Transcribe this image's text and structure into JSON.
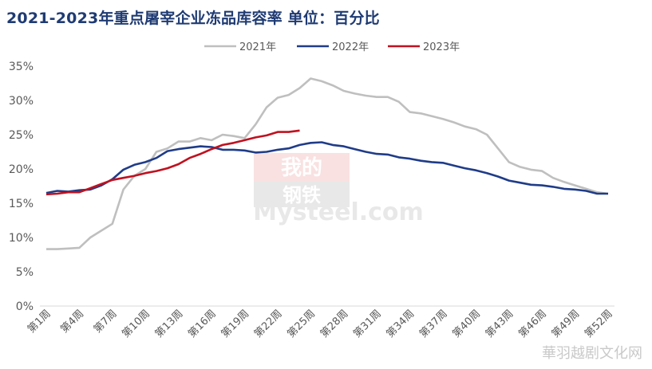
{
  "title": "2021-2023年重点屠宰企业冻品库容率 单位：百分比",
  "watermark": {
    "top": "我的",
    "middle": "钢铁",
    "brand": "Mysteel.com"
  },
  "corner_watermark": "華羽越剧文化网",
  "colors": {
    "2021": "#bfbfbf",
    "2022": "#1f3c88",
    "2023": "#c0111f",
    "axis": "#d9d9d9",
    "tick": "#595959",
    "title": "#1f3b73"
  },
  "chart_data": {
    "type": "line",
    "title": "2021-2023年重点屠宰企业冻品库容率 单位：百分比",
    "ylim": [
      0,
      35
    ],
    "yticks": [
      "0%",
      "5%",
      "10%",
      "15%",
      "20%",
      "25%",
      "30%",
      "35%"
    ],
    "xtick_labels": [
      "第1周",
      "第4周",
      "第7周",
      "第10周",
      "第13周",
      "第16周",
      "第19周",
      "第22周",
      "第25周",
      "第28周",
      "第31周",
      "第34周",
      "第37周",
      "第40周",
      "第43周",
      "第46周",
      "第49周",
      "第52周"
    ],
    "legend": [
      "2021年",
      "2022年",
      "2023年"
    ],
    "legend_position": "top",
    "grid": false,
    "series": [
      {
        "name": "2021年",
        "values": [
          8.3,
          8.3,
          8.4,
          8.5,
          10.0,
          11.0,
          12.0,
          17.0,
          19.0,
          20.0,
          22.5,
          23.0,
          24.0,
          24.0,
          24.5,
          24.2,
          25.0,
          24.8,
          24.5,
          26.5,
          29.0,
          30.4,
          30.8,
          31.8,
          33.2,
          32.8,
          32.2,
          31.4,
          31.0,
          30.7,
          30.5,
          30.5,
          29.8,
          28.3,
          28.1,
          27.7,
          27.3,
          26.8,
          26.2,
          25.8,
          25.0,
          23.0,
          21.0,
          20.3,
          19.9,
          19.7,
          18.7,
          18.1,
          17.6,
          17.1,
          16.6,
          16.4
        ]
      },
      {
        "name": "2022年",
        "values": [
          16.5,
          16.8,
          16.7,
          16.9,
          17.0,
          17.6,
          18.5,
          19.9,
          20.6,
          21.0,
          21.6,
          22.6,
          22.9,
          23.1,
          23.3,
          23.2,
          22.8,
          22.8,
          22.7,
          22.4,
          22.5,
          22.8,
          23.0,
          23.5,
          23.8,
          23.9,
          23.5,
          23.3,
          22.9,
          22.5,
          22.2,
          22.1,
          21.7,
          21.5,
          21.2,
          21.0,
          20.9,
          20.5,
          20.1,
          19.8,
          19.4,
          18.9,
          18.3,
          18.0,
          17.7,
          17.6,
          17.4,
          17.1,
          17.0,
          16.8,
          16.4,
          16.4
        ]
      },
      {
        "name": "2023年",
        "values": [
          16.3,
          16.4,
          16.6,
          16.6,
          17.2,
          17.8,
          18.4,
          18.7,
          19.0,
          19.4,
          19.7,
          20.1,
          20.7,
          21.6,
          22.2,
          22.9,
          23.5,
          23.8,
          24.2,
          24.6,
          24.9,
          25.4,
          25.4,
          25.6
        ]
      }
    ]
  }
}
